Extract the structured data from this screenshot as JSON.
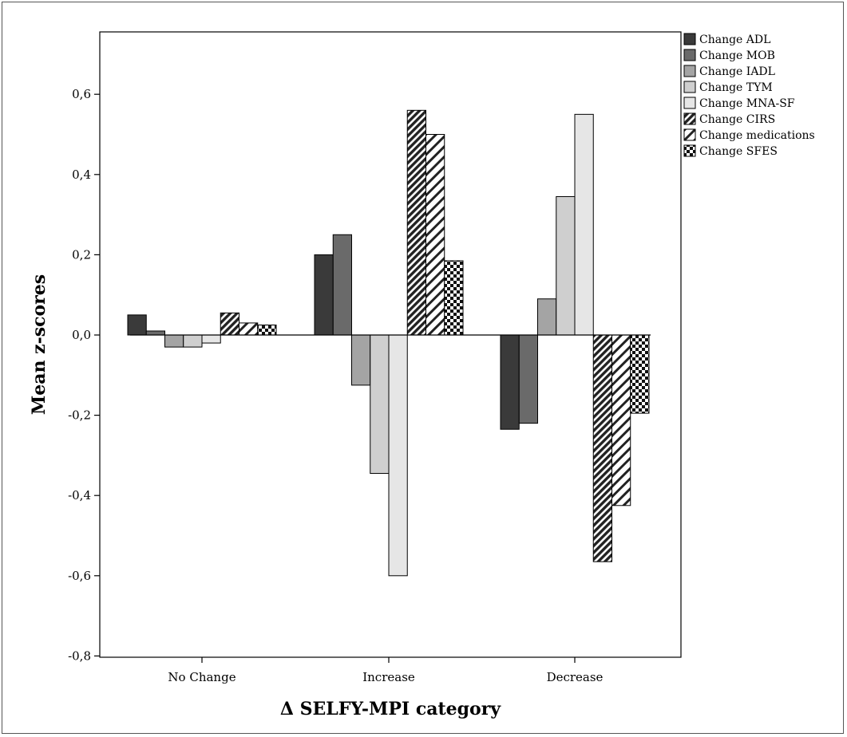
{
  "chart_data": {
    "type": "bar",
    "xlabel": "Δ SELFY-MPI category",
    "ylabel": "Mean z-scores",
    "ylim": [
      -0.8,
      0.7
    ],
    "yticks": [
      "-0,8",
      "-0,6",
      "-0,4",
      "-0,2",
      "0,0",
      "0,2",
      "0,4",
      "0,6"
    ],
    "categories": [
      "No Change",
      "Increase",
      "Decrease"
    ],
    "legend_position": "top-right",
    "grid": false,
    "series": [
      {
        "name": "Change ADL",
        "values": [
          0.05,
          0.2,
          -0.235
        ],
        "fill": "#3a3a3a",
        "pattern": "solid"
      },
      {
        "name": "Change MOB",
        "values": [
          0.01,
          0.25,
          -0.22
        ],
        "fill": "#6a6a6a",
        "pattern": "solid"
      },
      {
        "name": "Change IADL",
        "values": [
          -0.03,
          -0.125,
          0.09
        ],
        "fill": "#a4a4a4",
        "pattern": "solid"
      },
      {
        "name": "Change TYM",
        "values": [
          -0.03,
          -0.345,
          0.345
        ],
        "fill": "#cfcfcf",
        "pattern": "solid"
      },
      {
        "name": "Change MNA-SF",
        "values": [
          -0.02,
          -0.6,
          0.55
        ],
        "fill": "#e6e6e6",
        "pattern": "solid"
      },
      {
        "name": "Change CIRS",
        "values": [
          0.055,
          0.56,
          -0.565
        ],
        "fill": "#222222",
        "pattern": "dense-diagonal"
      },
      {
        "name": "Change medications",
        "values": [
          0.03,
          0.5,
          -0.425
        ],
        "fill": "#222222",
        "pattern": "diagonal"
      },
      {
        "name": "Change SFES",
        "values": [
          0.025,
          0.185,
          -0.195
        ],
        "fill": "#222222",
        "pattern": "checker"
      }
    ]
  }
}
